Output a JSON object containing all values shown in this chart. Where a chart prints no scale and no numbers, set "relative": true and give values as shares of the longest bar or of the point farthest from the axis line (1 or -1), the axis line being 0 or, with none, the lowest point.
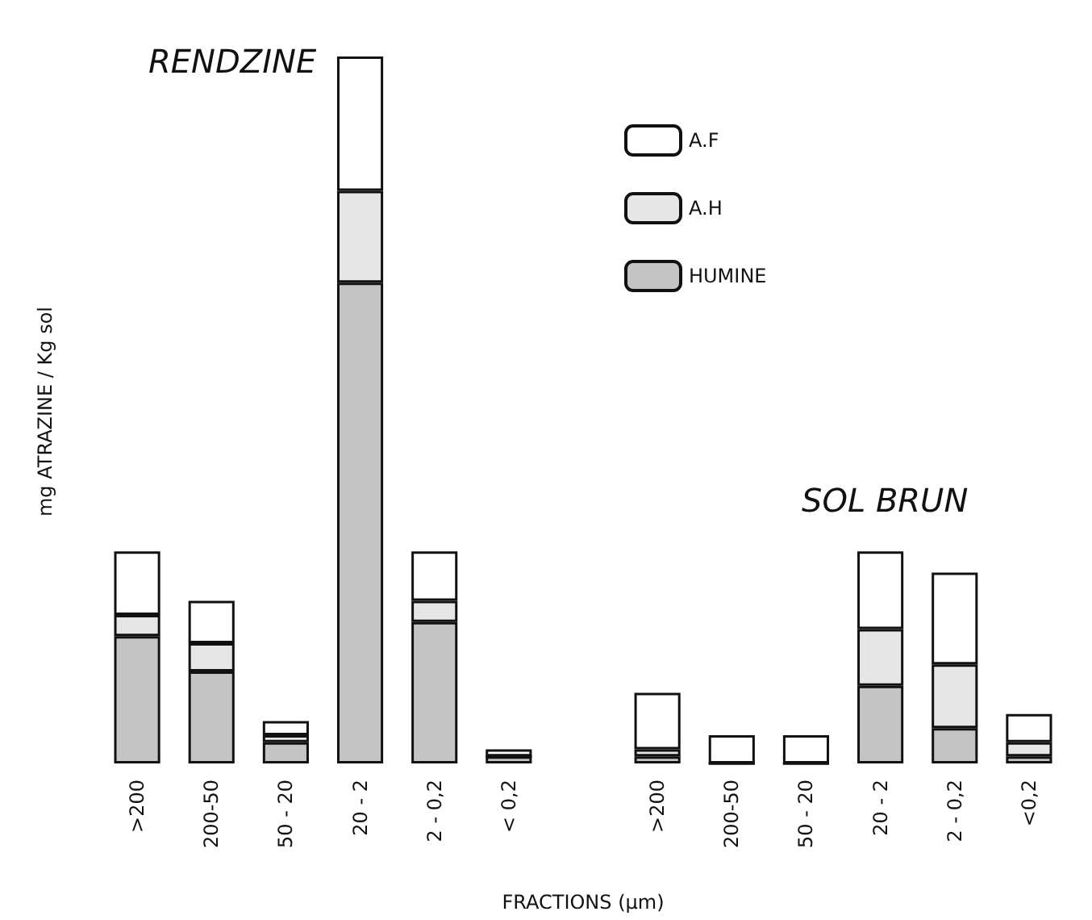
{
  "chart_data": {
    "type": "bar",
    "stacked": true,
    "relative": true,
    "xlabel": "FRACTIONS (µm)",
    "ylabel": "mg ATRAZINE / Kg sol",
    "annotations": [
      "RENDZINE",
      "SOL BRUN"
    ],
    "categories": [
      ">200",
      "200-50",
      "50 - 20",
      "20 - 2",
      "2 - 0,2",
      "< 0,2",
      null,
      ">200",
      "200-50",
      "50 - 20",
      "20 - 2",
      "2 - 0,2",
      "<0,2"
    ],
    "series": [
      {
        "name": "HUMINE",
        "color": "#c4c4c4",
        "values": [
          0.18,
          0.13,
          0.03,
          0.68,
          0.2,
          0.01,
          null,
          0.01,
          0,
          0,
          0.11,
          0.05,
          0.01
        ]
      },
      {
        "name": "A.H",
        "color": "#e6e6e6",
        "values": [
          0.03,
          0.04,
          0.01,
          0.13,
          0.03,
          0,
          null,
          0.01,
          0,
          0,
          0.08,
          0.09,
          0.02
        ]
      },
      {
        "name": "A.F",
        "color": "#ffffff",
        "values": [
          0.09,
          0.06,
          0.02,
          0.19,
          0.07,
          0.01,
          null,
          0.08,
          0.04,
          0.04,
          0.11,
          0.13,
          0.04
        ]
      }
    ],
    "legend": "top right"
  }
}
